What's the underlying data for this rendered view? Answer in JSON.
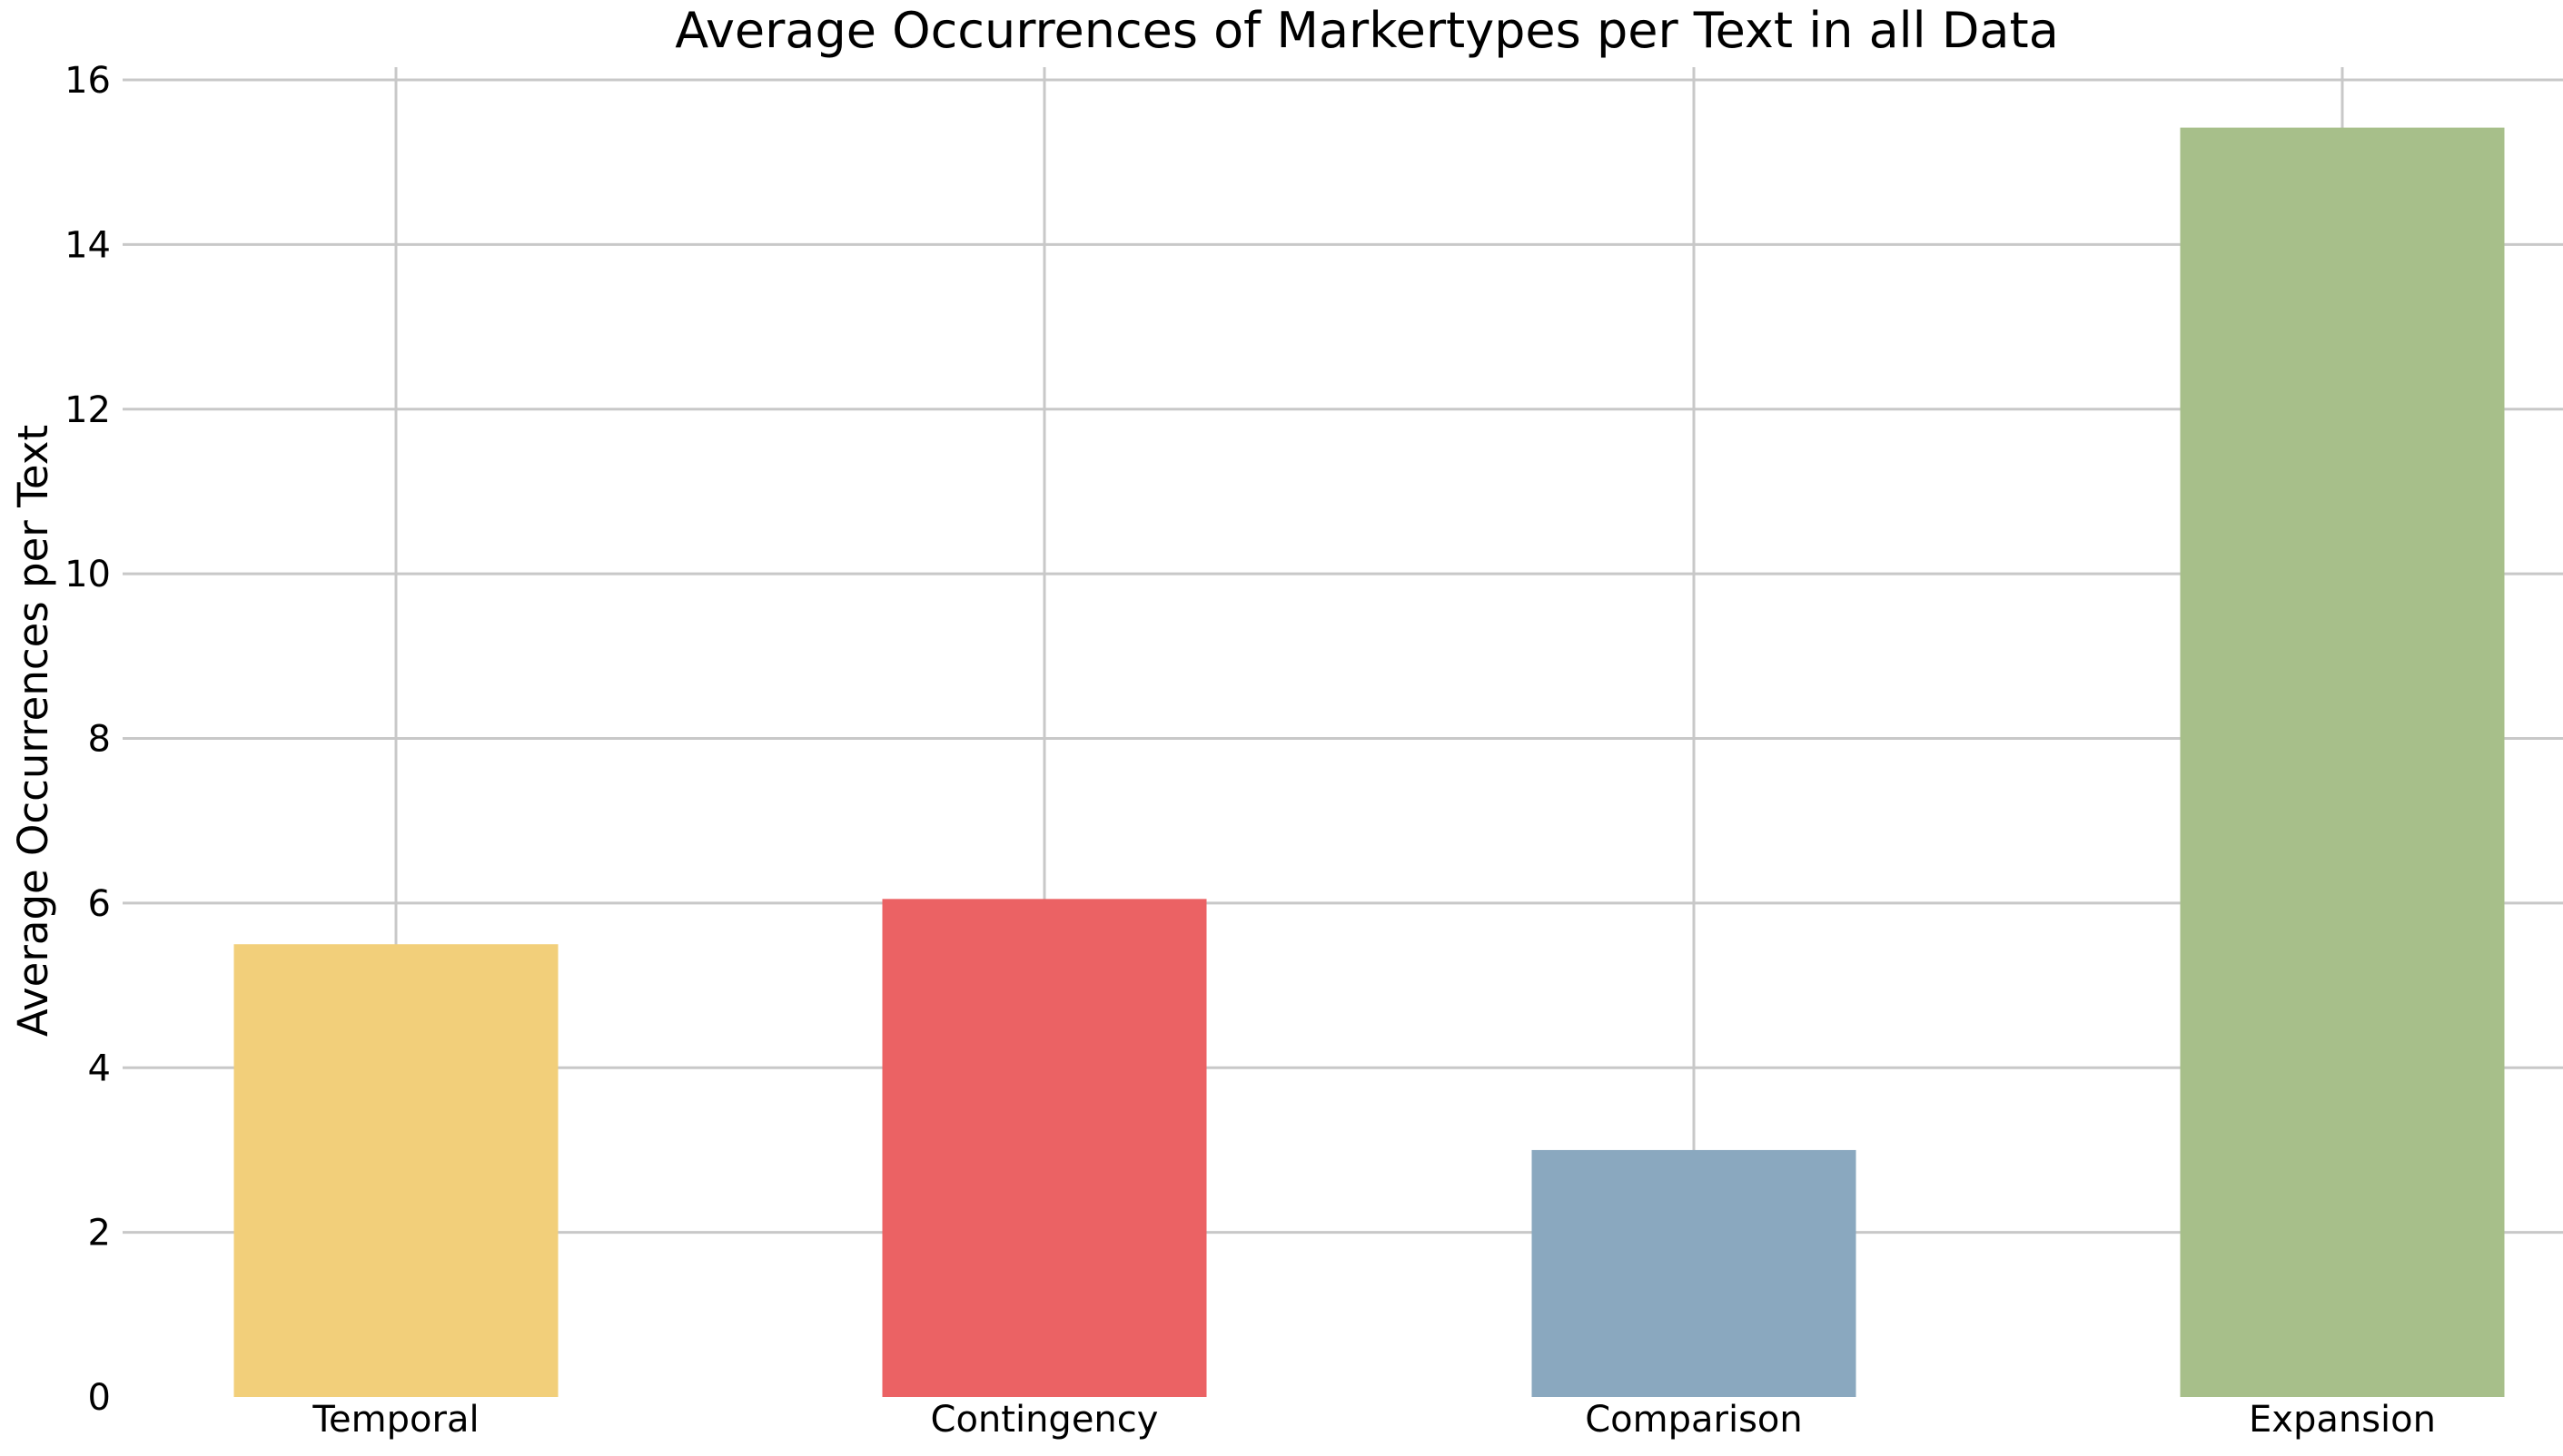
{
  "chart_data": {
    "type": "bar",
    "title": "Average Occurrences of Markertypes per Text in all Data",
    "xlabel": "",
    "ylabel": "Average Occurrences per Text",
    "categories": [
      "Temporal",
      "Contingency",
      "Comparison",
      "Expansion"
    ],
    "values": [
      5.5,
      6.05,
      3.0,
      15.42
    ],
    "colors": [
      "#f2cf7a",
      "#eb6264",
      "#8aa8bf",
      "#a7bf8a"
    ],
    "ylim": [
      0,
      16
    ],
    "yticks": [
      "0",
      "2",
      "4",
      "6",
      "8",
      "10",
      "12",
      "14",
      "16"
    ],
    "grid": true,
    "legend": "none"
  }
}
